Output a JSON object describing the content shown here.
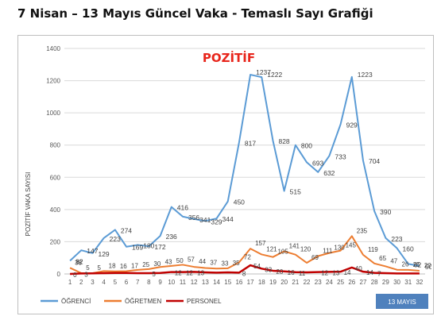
{
  "title": "7 Nisan – 13 Mayıs Güncel Vaka - Temaslı Sayı Grafiği",
  "chart_data": {
    "type": "line",
    "title": "POZİTİF",
    "ylabel": "POZİTİF VAKA SAYISI",
    "xlabel": "",
    "ylim": [
      0,
      1400
    ],
    "yticks": [
      0,
      200,
      400,
      600,
      800,
      1000,
      1200,
      1400
    ],
    "grid": true,
    "legend_position": "bottom-left",
    "badge": "13 MAYIS",
    "categories": [
      "1",
      "2",
      "3",
      "4",
      "5",
      "6",
      "7",
      "8",
      "9",
      "10",
      "11",
      "12",
      "13",
      "14",
      "15",
      "16",
      "17",
      "18",
      "19",
      "20",
      "21",
      "22",
      "23",
      "24",
      "25",
      "26",
      "27",
      "28",
      "29",
      "30",
      "31",
      "32"
    ],
    "series": [
      {
        "name": "ÖĞRENCİ",
        "color": "#5b9bd5",
        "values": [
          82,
          147,
          129,
          223,
          274,
          169,
          180,
          172,
          236,
          416,
          356,
          341,
          329,
          344,
          450,
          817,
          1237,
          1222,
          828,
          515,
          800,
          693,
          632,
          733,
          929,
          1223,
          704,
          390,
          223,
          160,
          62,
          50
        ],
        "labels": [
          "82",
          "147",
          "129",
          "223",
          "274",
          "169",
          "180",
          "172",
          "236",
          "416",
          "356",
          "341",
          "329",
          "344",
          "450",
          "817",
          "1237",
          "1222",
          "828",
          "515",
          "800",
          "693",
          "632",
          "733",
          "929",
          "1223",
          "704",
          "390",
          "223",
          "160",
          "62",
          "50"
        ]
      },
      {
        "name": "ÖĞRETMEN",
        "color": "#ed7d31",
        "values": [
          38,
          5,
          5,
          18,
          16,
          17,
          25,
          30,
          43,
          50,
          57,
          44,
          37,
          33,
          35,
          72,
          157,
          121,
          105,
          141,
          120,
          69,
          111,
          130,
          145,
          235,
          119,
          65,
          47,
          26,
          25,
          20
        ],
        "labels": [
          "38",
          "5",
          "5",
          "18",
          "16",
          "17",
          "25",
          "30",
          "43",
          "50",
          "57",
          "44",
          "37",
          "33",
          "35",
          "72",
          "157",
          "121",
          "105",
          "141",
          "120",
          "69",
          "111",
          "130",
          "145",
          "235",
          "119",
          "65",
          "47",
          "26",
          "25",
          "20"
        ]
      },
      {
        "name": "PERSONEL",
        "color": "#c00000",
        "values": [
          0,
          3,
          4,
          5,
          6,
          6,
          5,
          5,
          6,
          12,
          12,
          13,
          10,
          8,
          10,
          8,
          54,
          33,
          20,
          16,
          11,
          10,
          12,
          13,
          14,
          40,
          14,
          7,
          5,
          3,
          3,
          3
        ],
        "labels": [
          "0",
          "3",
          "",
          "",
          "",
          "",
          "",
          "5",
          "",
          "12",
          "12",
          "13",
          "",
          "",
          "",
          "8",
          "54",
          "33",
          "20",
          "16",
          "11",
          "",
          "12",
          "13",
          "14",
          "40",
          "14",
          "7",
          "",
          "",
          "",
          ""
        ]
      }
    ]
  }
}
